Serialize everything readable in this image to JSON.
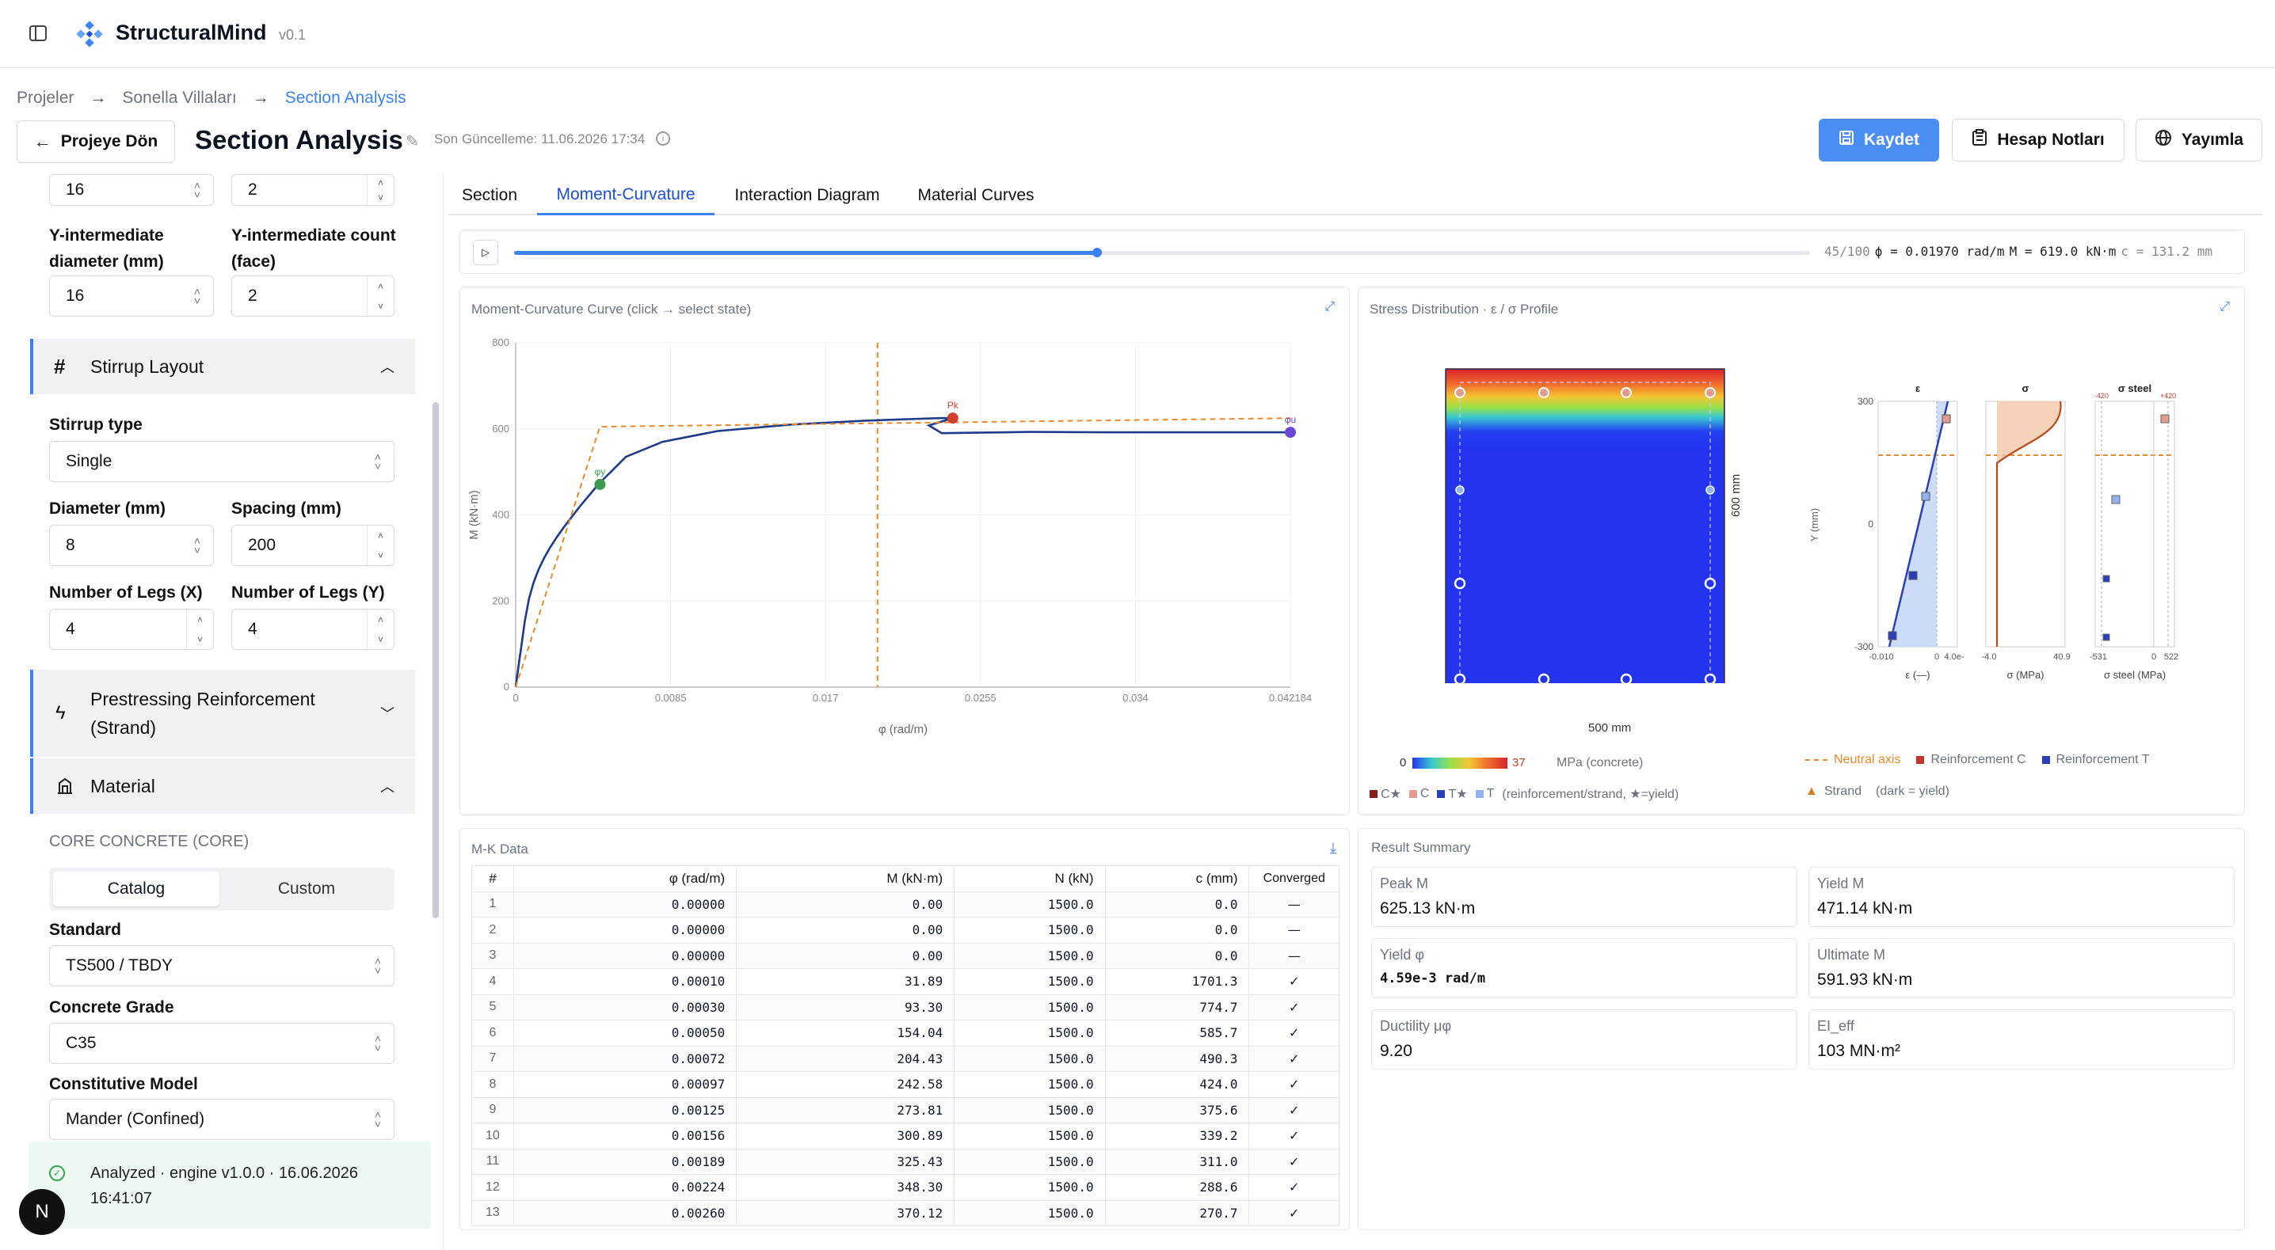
{
  "app": {
    "name": "StructuralMind",
    "version": "v0.1"
  },
  "breadcrumb": {
    "items": [
      "Projeler",
      "Sonella Villaları",
      "Section Analysis"
    ],
    "sep": "→"
  },
  "header": {
    "back_label": "Projeye Dön",
    "title": "Section Analysis",
    "updated": "Son Güncelleme: 11.06.2026 17:34",
    "save_label": "Kaydet",
    "notes_label": "Hesap Notları",
    "publish_label": "Yayımla"
  },
  "sidebar": {
    "top_left_value": "16",
    "top_right_value": "2",
    "y_int_diam_label": "Y-intermediate diameter (mm)",
    "y_int_diam_value": "16",
    "y_int_count_label": "Y-intermediate count (face)",
    "y_int_count_value": "2",
    "stirrup_section": "Stirrup Layout",
    "stirrup_type_label": "Stirrup type",
    "stirrup_type_value": "Single",
    "diameter_label": "Diameter (mm)",
    "diameter_value": "8",
    "spacing_label": "Spacing (mm)",
    "spacing_value": "200",
    "legs_x_label": "Number of Legs (X)",
    "legs_x_value": "4",
    "legs_y_label": "Number of Legs (Y)",
    "legs_y_value": "4",
    "prestress_section": "Prestressing Reinforcement (Strand)",
    "material_section": "Material",
    "core_concrete": "CORE CONCRETE (CORE)",
    "catalog_tab": "Catalog",
    "custom_tab": "Custom",
    "standard_label": "Standard",
    "standard_value": "TS500 / TBDY",
    "grade_label": "Concrete Grade",
    "grade_value": "C35",
    "model_label": "Constitutive Model",
    "model_value": "Mander (Confined)",
    "status": "Analyzed · engine v1.0.0 · 16.06.2026 16:41:07",
    "avatar": "N"
  },
  "tabs": [
    "Section",
    "Moment-Curvature",
    "Interaction Diagram",
    "Material Curves"
  ],
  "active_tab": 1,
  "player": {
    "progress": 0.45,
    "step": "45/100",
    "phi": "ϕ = 0.01970 rad/m",
    "moment": "M = 619.0 kN·m",
    "c": "c = 131.2 mm"
  },
  "mc_panel": {
    "title": "Moment-Curvature Curve (click → select state)"
  },
  "chart_data": {
    "type": "line",
    "title": "",
    "xlabel": "φ (rad/m)",
    "ylabel": "M (kN·m)",
    "xlim": [
      0,
      0.042184
    ],
    "ylim": [
      0,
      800
    ],
    "x_ticks": [
      "0",
      "0.0085",
      "0.017",
      "0.0255",
      "0.034",
      "0.042184"
    ],
    "y_ticks": [
      "0",
      "200",
      "400",
      "600",
      "800"
    ],
    "series": [
      {
        "color": "#1e3a8a",
        "x": [
          0,
          0.0001,
          0.0003,
          0.0005,
          0.00072,
          0.00097,
          0.00125,
          0.00156,
          0.00189,
          0.00224,
          0.0026,
          0.0035,
          0.0045,
          0.006,
          0.008,
          0.011,
          0.015,
          0.019,
          0.023,
          0.0238,
          0.0225,
          0.0232,
          0.025,
          0.028,
          0.032,
          0.036,
          0.04,
          0.042184
        ],
        "y": [
          0,
          31.89,
          93.3,
          154.04,
          204.43,
          242.58,
          273.81,
          300.89,
          325.43,
          348.3,
          370.12,
          420,
          471,
          535,
          570,
          595,
          610,
          619,
          625,
          625,
          608,
          590,
          591,
          593,
          592,
          592,
          592,
          592
        ]
      },
      {
        "color": "#ea8a2a",
        "dashed": true,
        "x": [
          0,
          0.00459,
          0.042184
        ],
        "y": [
          0,
          605,
          625
        ]
      }
    ],
    "markers": [
      {
        "label": "φy",
        "x": 0.00459,
        "y": 471,
        "color": "#3c9a4c"
      },
      {
        "label": "Pk",
        "x": 0.0238,
        "y": 625,
        "color": "#d2402f"
      },
      {
        "label": "φu",
        "x": 0.042184,
        "y": 592,
        "color": "#6d48d6"
      }
    ],
    "current_phi": 0.0197,
    "grid": true
  },
  "stress_panel": {
    "title": "Stress Distribution · ε / σ Profile",
    "width_label": "500 mm",
    "height_label": "600 mm",
    "colorbar": {
      "min": "0",
      "max": "37",
      "unit": "MPa (concrete)"
    },
    "legend_bottom": [
      "C★",
      "C",
      "T★",
      "T",
      "(reinforcement/strand, ★=yield)"
    ],
    "profiles": [
      {
        "title": "ε",
        "xlabel": "ε (—)",
        "ticks": [
          "-0.010",
          "0",
          "4.0e-"
        ]
      },
      {
        "title": "σ",
        "xlabel": "σ (MPa)",
        "ticks": [
          "-4.0",
          "40.9"
        ]
      },
      {
        "title": "σ steel",
        "xlabel": "σ steel (MPa)",
        "ticks": [
          "-531",
          "0",
          "522"
        ],
        "top_ticks": [
          "-420",
          "+420"
        ]
      }
    ],
    "y_axis": {
      "label": "Y (mm)",
      "ticks": [
        "300",
        "0",
        "-300"
      ]
    },
    "legend_right": [
      "Neutral axis",
      "Reinforcement C",
      "Reinforcement T",
      "Strand",
      "(dark = yield)"
    ]
  },
  "mk_table": {
    "title": "M-K Data",
    "headers": [
      "#",
      "φ (rad/m)",
      "M (kN·m)",
      "N (kN)",
      "c (mm)",
      "Converged"
    ],
    "rows": [
      [
        "1",
        "0.00000",
        "0.00",
        "1500.0",
        "0.0",
        "—"
      ],
      [
        "2",
        "0.00000",
        "0.00",
        "1500.0",
        "0.0",
        "—"
      ],
      [
        "3",
        "0.00000",
        "0.00",
        "1500.0",
        "0.0",
        "—"
      ],
      [
        "4",
        "0.00010",
        "31.89",
        "1500.0",
        "1701.3",
        "✓"
      ],
      [
        "5",
        "0.00030",
        "93.30",
        "1500.0",
        "774.7",
        "✓"
      ],
      [
        "6",
        "0.00050",
        "154.04",
        "1500.0",
        "585.7",
        "✓"
      ],
      [
        "7",
        "0.00072",
        "204.43",
        "1500.0",
        "490.3",
        "✓"
      ],
      [
        "8",
        "0.00097",
        "242.58",
        "1500.0",
        "424.0",
        "✓"
      ],
      [
        "9",
        "0.00125",
        "273.81",
        "1500.0",
        "375.6",
        "✓"
      ],
      [
        "10",
        "0.00156",
        "300.89",
        "1500.0",
        "339.2",
        "✓"
      ],
      [
        "11",
        "0.00189",
        "325.43",
        "1500.0",
        "311.0",
        "✓"
      ],
      [
        "12",
        "0.00224",
        "348.30",
        "1500.0",
        "288.6",
        "✓"
      ],
      [
        "13",
        "0.00260",
        "370.12",
        "1500.0",
        "270.7",
        "✓"
      ]
    ]
  },
  "summary": {
    "title": "Result Summary",
    "cards": [
      {
        "k": "Peak M",
        "v": "625.13 kN·m"
      },
      {
        "k": "Yield M",
        "v": "471.14 kN·m"
      },
      {
        "k": "Yield φ",
        "v": "4.59e-3 rad/m"
      },
      {
        "k": "Ultimate M",
        "v": "591.93 kN·m"
      },
      {
        "k": "Ductility μφ",
        "v": "9.20"
      },
      {
        "k": "EI_eff",
        "v": "103 MN·m²"
      }
    ]
  }
}
